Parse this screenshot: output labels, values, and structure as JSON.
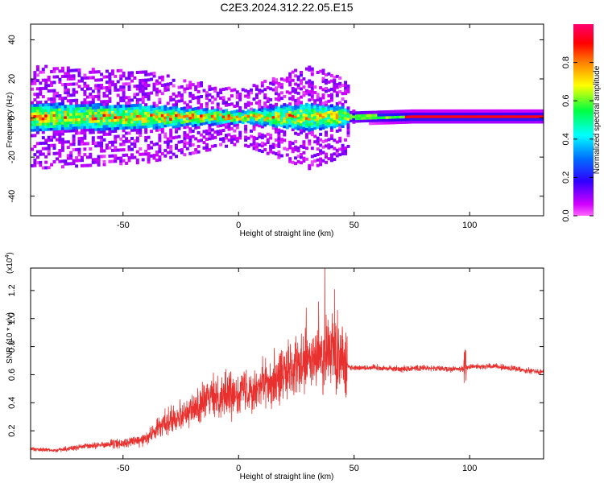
{
  "title": "C2E3.2024.312.22.05.E15",
  "colors": {
    "snr_line": "#e8312e",
    "colormap": [
      "#ff00ff",
      "#8000ff",
      "#0000ff",
      "#00ffff",
      "#00ff00",
      "#ffff00",
      "#ff8000",
      "#ff0000",
      "#ff0080"
    ]
  },
  "chart_data": [
    {
      "type": "heatmap",
      "xlabel": "Height of straight line (km)",
      "ylabel": "Frequency (Hz)",
      "xlim": [
        -90,
        132
      ],
      "ylim": [
        -50,
        48
      ],
      "xticks": [
        -50,
        0,
        50,
        100
      ],
      "yticks": [
        -40,
        -20,
        0,
        20,
        40
      ],
      "xtick_labels": [
        "-50",
        "0",
        "50",
        "100"
      ],
      "ytick_labels": [
        "-40",
        "-20",
        "0",
        "20",
        "40"
      ],
      "grid": false,
      "colorbar": {
        "label": "Normalized spectral amplitude",
        "range": [
          0,
          1
        ],
        "ticks": [
          0.0,
          0.2,
          0.4,
          0.6,
          0.8
        ],
        "tick_labels": [
          "0.0",
          "0.2",
          "0.4",
          "0.6",
          "0.8"
        ]
      },
      "band_center_hz": 0,
      "band_halfwidth_hz": [
        {
          "x": -90,
          "halfwidth": 7
        },
        {
          "x": -40,
          "halfwidth": 6
        },
        {
          "x": 0,
          "halfwidth": 3
        },
        {
          "x": 30,
          "halfwidth": 7
        },
        {
          "x": 45,
          "halfwidth": 5
        },
        {
          "x": 50,
          "halfwidth": 2
        },
        {
          "x": 75,
          "halfwidth": 1
        },
        {
          "x": 132,
          "halfwidth": 1
        }
      ]
    },
    {
      "type": "line",
      "xlabel": "Height of straight line (km)",
      "ylabel": "SNR (10 * v/v)",
      "exponent_label": "(x10",
      "exponent_sup": "4",
      "exponent_close": ")",
      "xlim": [
        -90,
        132
      ],
      "ylim": [
        0,
        1.36
      ],
      "xticks": [
        -50,
        0,
        50,
        100
      ],
      "yticks": [
        0.2,
        0.4,
        0.6,
        0.8,
        1.0,
        1.2
      ],
      "xtick_labels": [
        "-50",
        "0",
        "50",
        "100"
      ],
      "ytick_labels": [
        "0.2",
        "0.4",
        "0.6",
        "0.8",
        "1.0",
        "1.2"
      ],
      "grid": false,
      "series": [
        {
          "envelope_x": [
            -90,
            -80,
            -70,
            -60,
            -50,
            -40,
            -35,
            -30,
            -20,
            -10,
            0,
            10,
            20,
            30,
            35,
            40,
            44,
            47,
            48,
            50,
            60,
            70,
            80,
            90,
            95,
            98,
            100,
            110,
            120,
            132
          ],
          "envelope_y": [
            0.07,
            0.06,
            0.08,
            0.1,
            0.11,
            0.14,
            0.22,
            0.28,
            0.35,
            0.45,
            0.48,
            0.53,
            0.6,
            0.68,
            0.72,
            0.75,
            0.75,
            0.68,
            0.65,
            0.65,
            0.65,
            0.64,
            0.65,
            0.64,
            0.64,
            0.64,
            0.66,
            0.66,
            0.64,
            0.62
          ]
        }
      ]
    }
  ]
}
